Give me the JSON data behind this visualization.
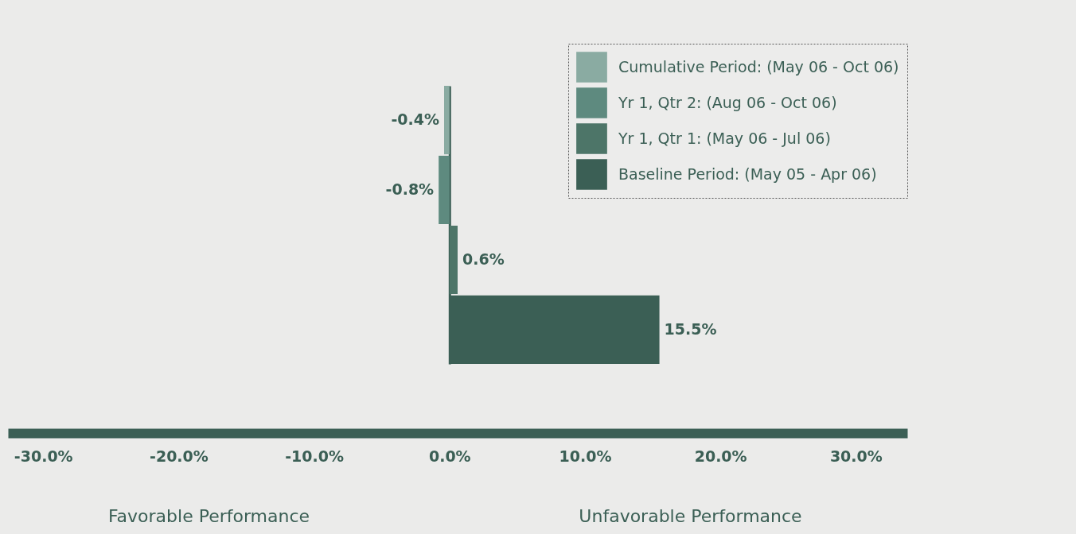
{
  "chart_data": {
    "type": "bar",
    "orientation": "horizontal",
    "categories": [
      null
    ],
    "series": [
      {
        "name": "Cumulative Period: (May 06 - Oct 06)",
        "color": "#8aaba2",
        "values": [
          -0.4
        ],
        "value_labels": [
          "-0.4%"
        ]
      },
      {
        "name": "Yr 1, Qtr 2: (Aug 06 - Oct 06)",
        "color": "#5e8a7f",
        "values": [
          -0.8
        ],
        "value_labels": [
          "-0.8%"
        ]
      },
      {
        "name": "Yr 1, Qtr 1: (May 06 - Jul 06)",
        "color": "#4d7568",
        "values": [
          0.6
        ],
        "value_labels": [
          "0.6%"
        ]
      },
      {
        "name": "Baseline Period: (May 05 - Apr 06)",
        "color": "#3b5f55",
        "values": [
          15.5
        ],
        "value_labels": [
          "15.5%"
        ]
      }
    ],
    "xlim": [
      -32.6,
      33.8
    ],
    "xticks": [
      {
        "value": -30,
        "label": "-30.0%"
      },
      {
        "value": -20,
        "label": "-20.0%"
      },
      {
        "value": -10,
        "label": "-10.0%"
      },
      {
        "value": 0,
        "label": "0.0%"
      },
      {
        "value": 10,
        "label": "10.0%"
      },
      {
        "value": 20,
        "label": "20.0%"
      },
      {
        "value": 30,
        "label": "30.0%"
      }
    ],
    "annotations": [
      "Favorable Performance",
      "Unfavorable Performance"
    ],
    "legend": "top right"
  }
}
